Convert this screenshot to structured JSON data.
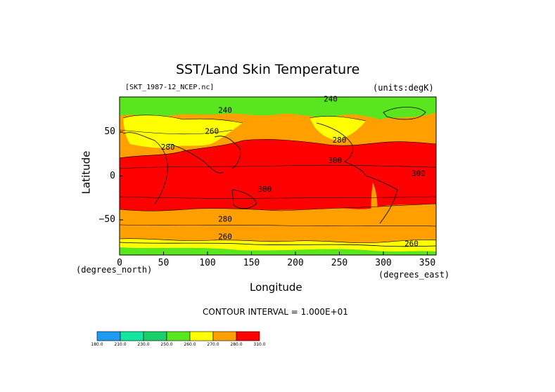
{
  "title": "SST/Land Skin Temperature",
  "dataset": "[SKT_1987-12_NCEP.nc]",
  "units": "(units:degK)",
  "ylabel": "Latitude",
  "xlabel": "Longitude",
  "xunit_left": "(degrees_north)",
  "xunit_right": "(degrees_east)",
  "contour_interval": "CONTOUR INTERVAL = 1.000E+01",
  "colors": {
    "c180": "#1e9bf0",
    "c210": "#12e6a0",
    "c230": "#19cf6a",
    "c250": "#5ae61e",
    "c260": "#ffff00",
    "c270": "#ffa000",
    "c290": "#ff0000"
  },
  "chart_data": {
    "type": "heatmap",
    "title": "SST/Land Skin Temperature",
    "xlabel": "Longitude",
    "ylabel": "Latitude",
    "xlim": [
      0,
      360
    ],
    "ylim": [
      -90,
      90
    ],
    "xticks": [
      "0",
      "50",
      "100",
      "150",
      "200",
      "250",
      "300",
      "350"
    ],
    "yticks": [
      "50",
      "0",
      "−50"
    ],
    "contour_labels": [
      {
        "text": "240",
        "lon": 120,
        "lat": 72
      },
      {
        "text": "240",
        "lon": 240,
        "lat": 85
      },
      {
        "text": "260",
        "lon": 105,
        "lat": 48
      },
      {
        "text": "280",
        "lon": 55,
        "lat": 30
      },
      {
        "text": "280",
        "lon": 250,
        "lat": 38
      },
      {
        "text": "300",
        "lon": 245,
        "lat": 15
      },
      {
        "text": "300",
        "lon": 165,
        "lat": -18
      },
      {
        "text": "300",
        "lon": 340,
        "lat": 0
      },
      {
        "text": "280",
        "lon": 120,
        "lat": -52
      },
      {
        "text": "260",
        "lon": 120,
        "lat": -72
      },
      {
        "text": "260",
        "lon": 332,
        "lat": -80
      }
    ],
    "colorbar": {
      "levels": [
        "180.0",
        "210.0",
        "230.0",
        "250.0",
        "260.0",
        "270.0",
        "280.0",
        "310.0"
      ]
    }
  }
}
